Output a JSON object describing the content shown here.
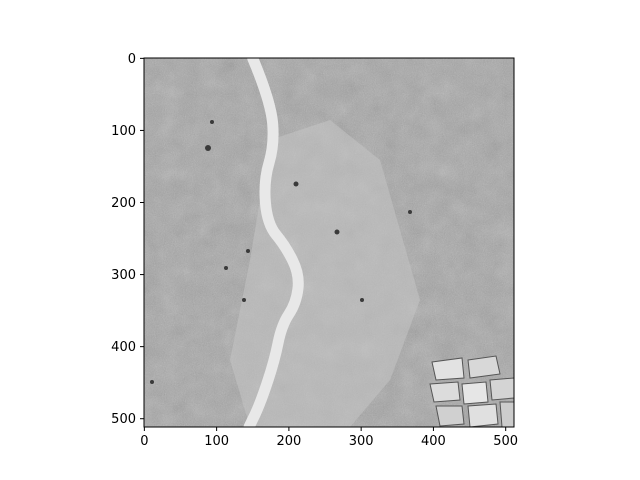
{
  "chart_data": {
    "type": "image",
    "title": "",
    "xlabel": "",
    "ylabel": "",
    "image_width": 512,
    "image_height": 512,
    "xlim": [
      -0.5,
      511.5
    ],
    "ylim": [
      511.5,
      -0.5
    ],
    "x_ticks": [
      0,
      100,
      200,
      300,
      400,
      500
    ],
    "x_tick_labels": [
      "0",
      "100",
      "200",
      "300",
      "400",
      "500"
    ],
    "y_ticks": [
      0,
      100,
      200,
      300,
      400,
      500
    ],
    "y_tick_labels": [
      "0",
      "100",
      "200",
      "300",
      "400",
      "500"
    ],
    "colormap": "gray",
    "content": "grayscale satellite image with a light winding river running from top to bottom",
    "river_centerline": [
      [
        150,
        0
      ],
      [
        175,
        60
      ],
      [
        180,
        120
      ],
      [
        165,
        170
      ],
      [
        170,
        230
      ],
      [
        195,
        260
      ],
      [
        215,
        300
      ],
      [
        210,
        340
      ],
      [
        190,
        370
      ],
      [
        180,
        420
      ],
      [
        160,
        480
      ],
      [
        145,
        511
      ]
    ],
    "colors": {
      "background": "#ffffff",
      "land": "#a7a7a7",
      "river": "#e6e6e6",
      "axis": "#000000"
    }
  }
}
